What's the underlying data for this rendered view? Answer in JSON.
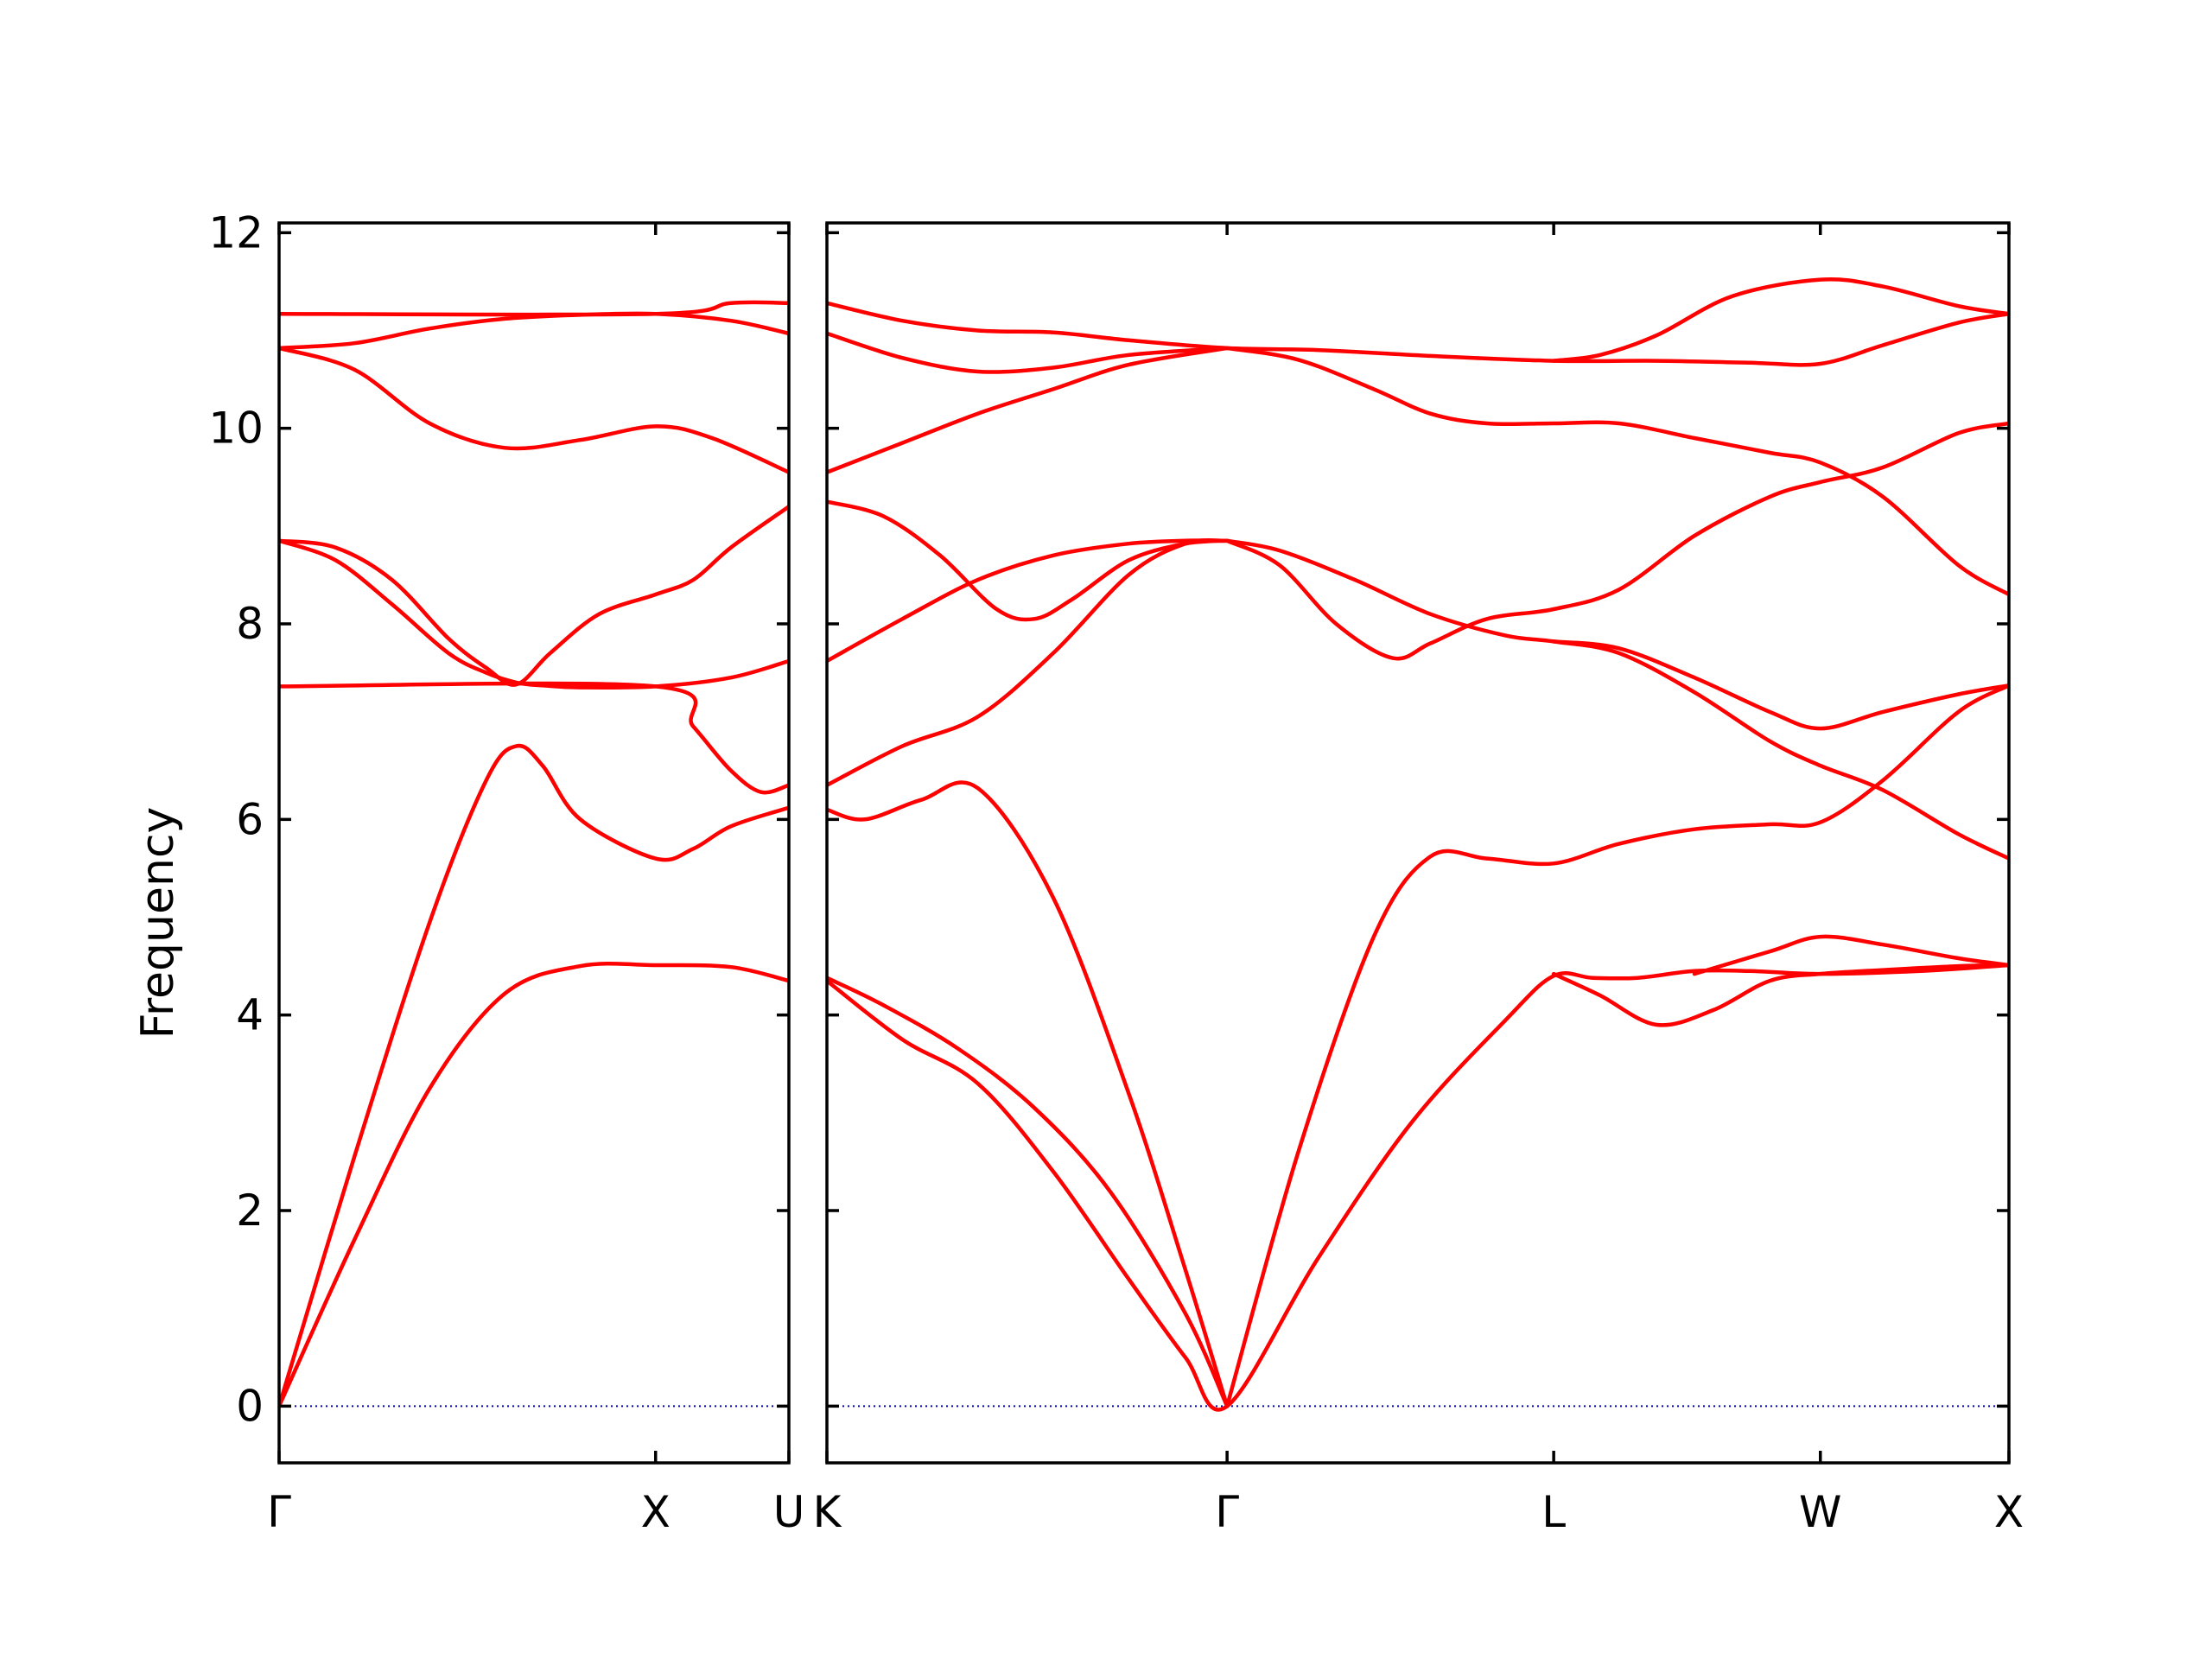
{
  "chart_data": {
    "type": "line",
    "title": "",
    "ylabel": "Frequency",
    "xlabel": "",
    "ylim": [
      -0.58,
      12.1
    ],
    "yticks": [
      0,
      2,
      4,
      6,
      8,
      10,
      12
    ],
    "grid": false,
    "legend": "none",
    "colors": {
      "band": "#ff0000",
      "zero_line": "#0000cc"
    },
    "panels": [
      {
        "name": "panel-left",
        "path_ticks": [
          {
            "label": "Γ",
            "at": 0.0
          },
          {
            "label": "X",
            "at": 1.0
          },
          {
            "label": "U",
            "at": 1.354
          }
        ],
        "xlim": [
          0,
          1.354
        ],
        "bands": [
          {
            "x": [
              0,
              0.2,
              0.4,
              0.6,
              0.8,
              1.0,
              1.2,
              1.354
            ],
            "y": [
              0,
              1.7,
              3.25,
              4.22,
              4.5,
              4.51,
              4.49,
              4.35
            ]
          },
          {
            "x": [
              0,
              0.2,
              0.4,
              0.55,
              0.63,
              0.7,
              0.8,
              1.0,
              1.1,
              1.2,
              1.354
            ],
            "y": [
              0,
              2.55,
              4.95,
              6.4,
              6.75,
              6.55,
              6.0,
              5.6,
              5.7,
              5.93,
              6.12
            ]
          },
          {
            "x": [
              0,
              0.15,
              0.3,
              0.45,
              0.55,
              0.63,
              0.7,
              0.8,
              1.0,
              1.2,
              1.354
            ],
            "y": [
              8.85,
              8.65,
              8.2,
              7.7,
              7.5,
              7.4,
              7.37,
              7.35,
              7.36,
              7.45,
              7.62
            ]
          },
          {
            "x": [
              0,
              0.15,
              0.3,
              0.45,
              0.55,
              0.63,
              0.72,
              0.85,
              1.0,
              1.1,
              1.2,
              1.354
            ],
            "y": [
              8.85,
              8.78,
              8.45,
              7.85,
              7.55,
              7.38,
              7.7,
              8.1,
              8.3,
              8.45,
              8.78,
              9.2
            ]
          },
          {
            "x": [
              0,
              1.0,
              1.1,
              1.2,
              1.28,
              1.354
            ],
            "y": [
              7.36,
              7.36,
              6.95,
              6.5,
              6.28,
              6.35
            ]
          },
          {
            "x": [
              0,
              0.2,
              0.4,
              0.6,
              0.8,
              1.0,
              1.15,
              1.354
            ],
            "y": [
              10.82,
              10.6,
              10.05,
              9.8,
              9.88,
              10.02,
              9.9,
              9.55
            ]
          },
          {
            "x": [
              0,
              0.2,
              0.4,
              0.6,
              0.8,
              1.0,
              1.2,
              1.354
            ],
            "y": [
              10.82,
              10.87,
              11.02,
              11.12,
              11.16,
              11.17,
              11.1,
              10.97
            ]
          },
          {
            "x": [
              0,
              1.0,
              1.2,
              1.354
            ],
            "y": [
              11.17,
              11.17,
              11.28,
              11.28
            ]
          }
        ]
      },
      {
        "name": "panel-right",
        "path_ticks": [
          {
            "label": "K",
            "at": 0.0
          },
          {
            "label": "Γ",
            "at": 1.061
          },
          {
            "label": "L",
            "at": 1.927
          },
          {
            "label": "W",
            "at": 2.634
          },
          {
            "label": "X",
            "at": 3.134
          }
        ],
        "xlim": [
          0,
          3.134
        ],
        "bands": [
          {
            "x": [
              0,
              0.2,
              0.4,
              0.6,
              0.8,
              0.95,
              1.061,
              1.3,
              1.55,
              1.8,
              1.927,
              2.03,
              2.15,
              2.3,
              2.45,
              2.634,
              2.9,
              3.134
            ],
            "y": [
              4.35,
              3.75,
              3.3,
              2.4,
              1.3,
              0.5,
              0,
              1.5,
              2.9,
              3.95,
              4.4,
              4.38,
              4.38,
              4.45,
              4.45,
              4.42,
              4.45,
              4.51
            ]
          },
          {
            "x": [
              0,
              0.15,
              0.35,
              0.55,
              0.75,
              0.95,
              1.061
            ],
            "y": [
              4.38,
              4.1,
              3.65,
              3.05,
              2.2,
              0.95,
              0
            ]
          },
          {
            "x": [
              1.927,
              2.05,
              2.2,
              2.35,
              2.5,
              2.634,
              2.8,
              3.0,
              3.134
            ],
            "y": [
              4.42,
              4.2,
              3.9,
              4.05,
              4.35,
              4.42,
              4.46,
              4.5,
              4.51
            ]
          },
          {
            "x": [
              2.3,
              2.5,
              2.634,
              2.8,
              3.0,
              3.134
            ],
            "y": [
              4.42,
              4.65,
              4.8,
              4.72,
              4.58,
              4.51
            ]
          },
          {
            "x": [
              0,
              0.1,
              0.25,
              0.4,
              0.6,
              0.8,
              0.95,
              1.061
            ],
            "y": [
              6.1,
              6.0,
              6.2,
              6.32,
              5.2,
              3.2,
              1.4,
              0
            ]
          },
          {
            "x": [
              1.061,
              1.25,
              1.45,
              1.6,
              1.75,
              1.927,
              2.1,
              2.3,
              2.5,
              2.634,
              2.8,
              3.0,
              3.134
            ],
            "y": [
              0,
              2.6,
              4.8,
              5.62,
              5.6,
              5.55,
              5.75,
              5.9,
              5.95,
              5.97,
              6.4,
              7.1,
              7.37
            ]
          },
          {
            "x": [
              0,
              0.2,
              0.4,
              0.6,
              0.8,
              0.95,
              1.061
            ],
            "y": [
              6.35,
              6.75,
              7.05,
              7.7,
              8.5,
              8.82,
              8.85
            ]
          },
          {
            "x": [
              0,
              0.2,
              0.4,
              0.6,
              0.8,
              0.95,
              1.061
            ],
            "y": [
              7.62,
              8.05,
              8.45,
              8.7,
              8.82,
              8.85,
              8.85
            ]
          },
          {
            "x": [
              0,
              0.15,
              0.3,
              0.45,
              0.55,
              0.65,
              0.8,
              0.95,
              1.061
            ],
            "y": [
              9.25,
              9.1,
              8.7,
              8.15,
              8.05,
              8.25,
              8.65,
              8.82,
              8.85
            ]
          },
          {
            "x": [
              1.061,
              1.2,
              1.35,
              1.5,
              1.6,
              1.75,
              1.927,
              2.1,
              2.3,
              2.5,
              2.634,
              2.8,
              3.0,
              3.134
            ],
            "y": [
              8.85,
              8.6,
              8.0,
              7.65,
              7.8,
              8.05,
              8.15,
              8.35,
              8.9,
              9.3,
              9.45,
              9.6,
              9.95,
              10.05
            ]
          },
          {
            "x": [
              1.061,
              1.2,
              1.4,
              1.6,
              1.8,
              1.927,
              2.1,
              2.3,
              2.5,
              2.634,
              2.8,
              3.0,
              3.134
            ],
            "y": [
              8.85,
              8.75,
              8.45,
              8.1,
              7.88,
              7.82,
              7.7,
              7.3,
              6.8,
              6.55,
              6.3,
              5.85,
              5.6
            ]
          },
          {
            "x": [
              1.927,
              2.1,
              2.3,
              2.5,
              2.634,
              2.8,
              3.0,
              3.134
            ],
            "y": [
              7.82,
              7.75,
              7.45,
              7.1,
              6.93,
              7.1,
              7.28,
              7.37
            ]
          },
          {
            "x": [
              0,
              0.2,
              0.4,
              0.6,
              0.8,
              1.061
            ],
            "y": [
              9.55,
              9.85,
              10.15,
              10.4,
              10.65,
              10.82
            ]
          },
          {
            "x": [
              1.061,
              1.25,
              1.45,
              1.6,
              1.75,
              1.927,
              2.1,
              2.3,
              2.5,
              2.634,
              2.8,
              3.0,
              3.134
            ],
            "y": [
              10.82,
              10.7,
              10.4,
              10.15,
              10.05,
              10.05,
              10.05,
              9.9,
              9.75,
              9.65,
              9.3,
              8.6,
              8.3
            ]
          },
          {
            "x": [
              0,
              0.2,
              0.4,
              0.6,
              0.8,
              1.061
            ],
            "y": [
              10.97,
              10.72,
              10.58,
              10.62,
              10.75,
              10.82
            ]
          },
          {
            "x": [
              0,
              0.2,
              0.4,
              0.6,
              0.8,
              1.061,
              1.3,
              1.6,
              1.927,
              2.2,
              2.45,
              2.634,
              2.8,
              3.0,
              3.134
            ],
            "y": [
              11.28,
              11.1,
              11.0,
              10.98,
              10.9,
              10.82,
              10.8,
              10.74,
              10.69,
              10.69,
              10.67,
              10.66,
              10.85,
              11.08,
              11.17
            ]
          },
          {
            "x": [
              1.927,
              2.05,
              2.2,
              2.4,
              2.634,
              2.8,
              3.0,
              3.134
            ],
            "y": [
              10.69,
              10.75,
              10.95,
              11.35,
              11.52,
              11.45,
              11.25,
              11.17
            ]
          }
        ]
      }
    ]
  }
}
